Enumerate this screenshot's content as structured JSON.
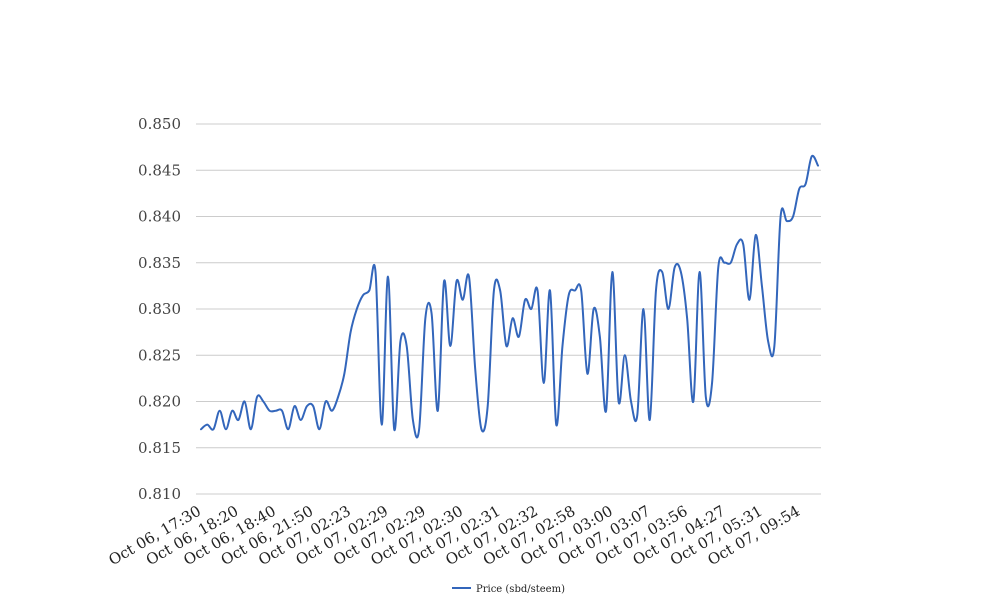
{
  "chart_data": {
    "type": "line",
    "title": "",
    "xlabel": "",
    "ylabel": "",
    "ylim": [
      0.81,
      0.85
    ],
    "y_ticks": [
      "0.810",
      "0.815",
      "0.820",
      "0.825",
      "0.830",
      "0.835",
      "0.840",
      "0.845",
      "0.850"
    ],
    "y_tick_values": [
      0.81,
      0.815,
      0.82,
      0.825,
      0.83,
      0.835,
      0.84,
      0.845,
      0.85
    ],
    "x_tick_labels": [
      "Oct 06, 17:30",
      "Oct 06, 18:20",
      "Oct 06, 18:40",
      "Oct 06, 21:50",
      "Oct 07, 02:23",
      "Oct 07, 02:29",
      "Oct 07, 02:29",
      "Oct 07, 02:30",
      "Oct 07, 02:31",
      "Oct 07, 02:32",
      "Oct 07, 02:58",
      "Oct 07, 03:00",
      "Oct 07, 03:07",
      "Oct 07, 03:56",
      "Oct 07, 04:27",
      "Oct 07, 05:31",
      "Oct 07, 09:54"
    ],
    "grid": true,
    "legend_position": "bottom",
    "series": [
      {
        "name": "Price (sbd/steem)",
        "color": "#3366bb",
        "values": [
          0.817,
          0.8175,
          0.817,
          0.819,
          0.817,
          0.819,
          0.818,
          0.82,
          0.817,
          0.8205,
          0.82,
          0.819,
          0.819,
          0.819,
          0.817,
          0.8195,
          0.818,
          0.8195,
          0.8195,
          0.817,
          0.82,
          0.819,
          0.8205,
          0.823,
          0.8275,
          0.83,
          0.8315,
          0.832,
          0.834,
          0.8175,
          0.8335,
          0.817,
          0.8265,
          0.826,
          0.818,
          0.817,
          0.829,
          0.8295,
          0.819,
          0.833,
          0.826,
          0.833,
          0.831,
          0.8335,
          0.8235,
          0.817,
          0.8195,
          0.832,
          0.832,
          0.826,
          0.829,
          0.827,
          0.831,
          0.83,
          0.832,
          0.822,
          0.832,
          0.8175,
          0.826,
          0.8315,
          0.832,
          0.832,
          0.823,
          0.83,
          0.827,
          0.819,
          0.834,
          0.82,
          0.825,
          0.82,
          0.8185,
          0.83,
          0.818,
          0.832,
          0.834,
          0.83,
          0.8345,
          0.834,
          0.829,
          0.82,
          0.834,
          0.8205,
          0.822,
          0.8345,
          0.835,
          0.835,
          0.837,
          0.837,
          0.831,
          0.838,
          0.8325,
          0.8265,
          0.826,
          0.84,
          0.8395,
          0.84,
          0.843,
          0.8435,
          0.8465,
          0.8455
        ]
      }
    ]
  }
}
